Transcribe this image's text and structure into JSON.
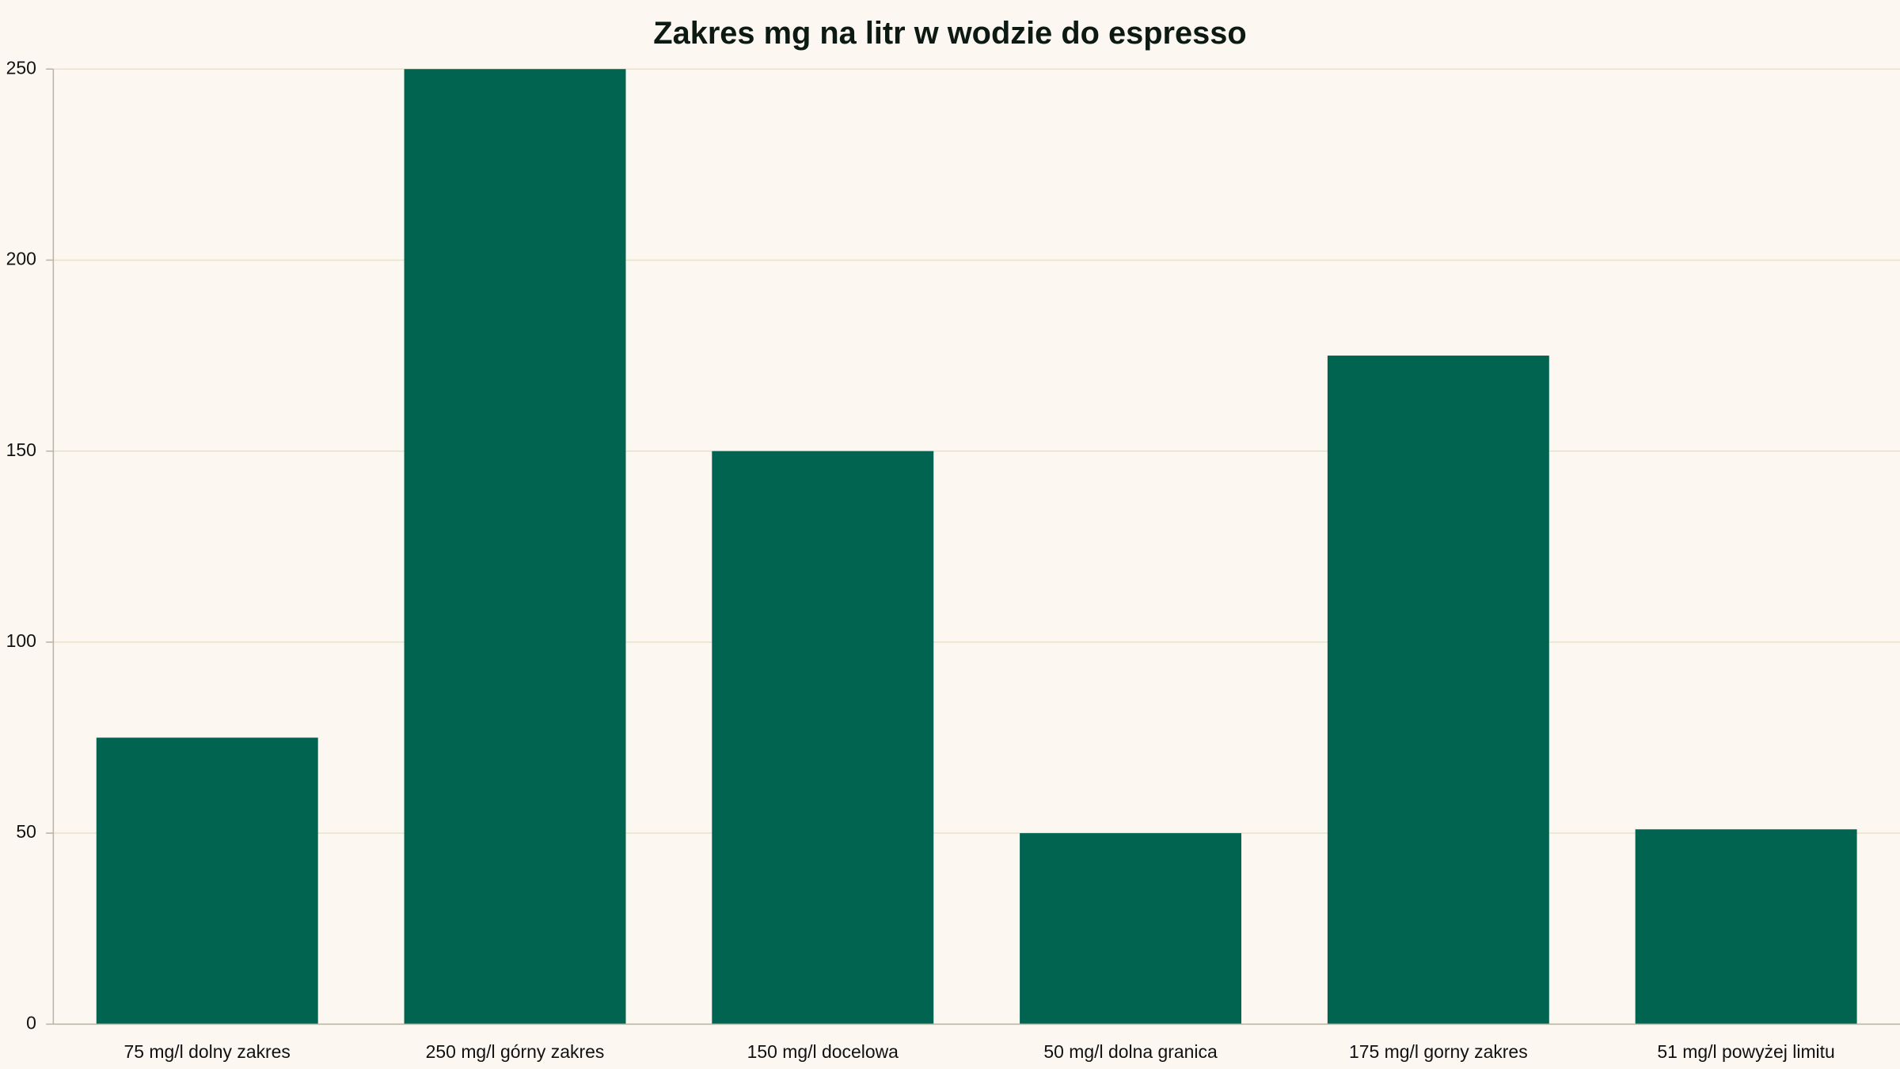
{
  "chart_data": {
    "type": "bar",
    "title": "Zakres mg na litr w wodzie do espresso",
    "categories": [
      "75 mg/l dolny zakres",
      "250 mg/l górny zakres",
      "150 mg/l docelowa",
      "50 mg/l dolna granica",
      "175 mg/l gorny zakres",
      "51 mg/l powyżej limitu"
    ],
    "values": [
      75,
      250,
      150,
      50,
      175,
      51
    ],
    "color": "#006450",
    "ylim": [
      0,
      250
    ],
    "yticks": [
      0,
      50,
      100,
      150,
      200,
      250
    ],
    "grid": true
  }
}
